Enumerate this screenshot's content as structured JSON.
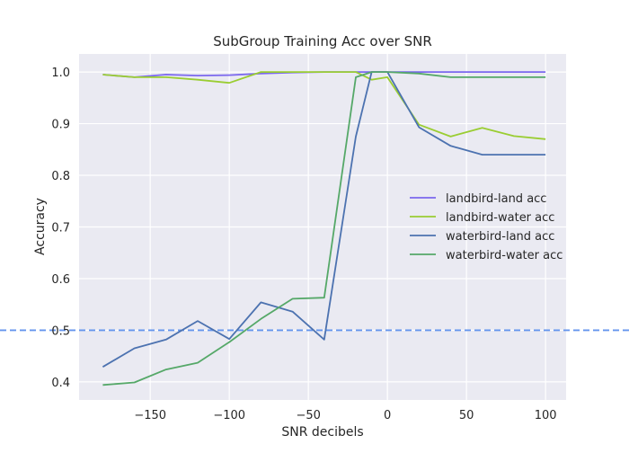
{
  "chart_data": {
    "type": "line",
    "title": "SubGroup Training Acc over SNR",
    "xlabel": "SNR decibels",
    "ylabel": "Accuracy",
    "xlim": [
      -195,
      113
    ],
    "ylim": [
      0.365,
      1.035
    ],
    "xticks": [
      -150,
      -100,
      -50,
      0,
      50,
      100
    ],
    "xtick_labels": [
      "−150",
      "−100",
      "−50",
      "0",
      "50",
      "100"
    ],
    "yticks": [
      0.4,
      0.5,
      0.6,
      0.7,
      0.8,
      0.9,
      1.0
    ],
    "ytick_labels": [
      "0.4",
      "0.5",
      "0.6",
      "0.7",
      "0.8",
      "0.9",
      "1.0"
    ],
    "grid": true,
    "legend_position": "center-right",
    "reference_line": {
      "y": 0.5,
      "style": "dashed",
      "color": "#6495ed"
    },
    "x": [
      -180,
      -160,
      -140,
      -120,
      -100,
      -80,
      -60,
      -40,
      -20,
      -10,
      0,
      20,
      40,
      60,
      80,
      100
    ],
    "series": [
      {
        "name": "landbird-land acc",
        "color": "#7b68ee",
        "values": [
          0.995,
          0.99,
          0.995,
          0.993,
          0.994,
          0.997,
          0.999,
          1.0,
          1.0,
          1.0,
          1.0,
          1.0,
          1.0,
          1.0,
          1.0,
          1.0
        ]
      },
      {
        "name": "landbird-water acc",
        "color": "#9acd32",
        "values": [
          0.995,
          0.99,
          0.99,
          0.985,
          0.979,
          1.0,
          1.0,
          1.0,
          1.0,
          0.985,
          0.99,
          0.898,
          0.875,
          0.892,
          0.876,
          0.87
        ]
      },
      {
        "name": "waterbird-land acc",
        "color": "#4c72b0",
        "values": [
          0.429,
          0.465,
          0.482,
          0.518,
          0.483,
          0.554,
          0.536,
          0.482,
          0.875,
          1.0,
          1.0,
          0.893,
          0.857,
          0.84,
          0.84,
          0.84
        ]
      },
      {
        "name": "waterbird-water acc",
        "color": "#55a868",
        "values": [
          0.394,
          0.399,
          0.424,
          0.437,
          0.477,
          0.522,
          0.561,
          0.563,
          0.99,
          1.0,
          1.0,
          0.997,
          0.99,
          0.99,
          0.99,
          0.99
        ]
      }
    ]
  }
}
